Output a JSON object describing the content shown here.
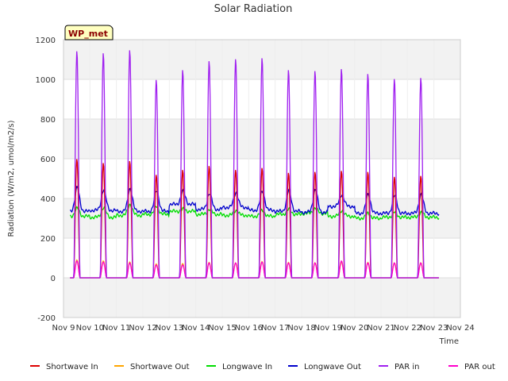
{
  "chart_data": {
    "type": "line",
    "title": "Solar Radiation",
    "xlabel": "Time",
    "ylabel": "Radiation (W/m2, umol/m2/s)",
    "badge": "WP_met",
    "xlim": [
      9,
      24
    ],
    "ylim": [
      -200,
      1200
    ],
    "x_ticks": [
      {
        "value": 9,
        "label": "Nov 9"
      },
      {
        "value": 10,
        "label": "Nov 10"
      },
      {
        "value": 11,
        "label": "Nov 11"
      },
      {
        "value": 12,
        "label": "Nov 12"
      },
      {
        "value": 13,
        "label": "Nov 13"
      },
      {
        "value": 14,
        "label": "Nov 14"
      },
      {
        "value": 15,
        "label": "Nov 15"
      },
      {
        "value": 16,
        "label": "Nov 16"
      },
      {
        "value": 17,
        "label": "Nov 17"
      },
      {
        "value": 18,
        "label": "Nov 18"
      },
      {
        "value": 19,
        "label": "Nov 19"
      },
      {
        "value": 20,
        "label": "Nov 20"
      },
      {
        "value": 21,
        "label": "Nov 21"
      },
      {
        "value": 22,
        "label": "Nov 22"
      },
      {
        "value": 23,
        "label": "Nov 23"
      },
      {
        "value": 24,
        "label": "Nov 24"
      }
    ],
    "y_ticks": [
      -200,
      0,
      200,
      400,
      600,
      800,
      1000,
      1200
    ],
    "grid": true,
    "legend_position": "bottom",
    "series": [
      {
        "name": "Shortwave In",
        "color": "#dd0000",
        "daily_peaks": [
          600,
          580,
          590,
          520,
          545,
          565,
          545,
          555,
          530,
          535,
          540,
          535,
          510,
          515
        ],
        "baseline": [
          0,
          0,
          0,
          0,
          0,
          0,
          0,
          0,
          0,
          0,
          0,
          0,
          0,
          0
        ]
      },
      {
        "name": "Shortwave Out",
        "color": "#ffa500",
        "daily_peaks": [
          90,
          85,
          80,
          70,
          72,
          78,
          75,
          82,
          78,
          76,
          80,
          78,
          75,
          76
        ],
        "baseline": [
          0,
          0,
          0,
          0,
          0,
          0,
          0,
          0,
          0,
          0,
          0,
          0,
          0,
          0
        ]
      },
      {
        "name": "Longwave In",
        "color": "#00dd00",
        "daily_peaks": [
          350,
          355,
          370,
          360,
          345,
          345,
          340,
          340,
          345,
          350,
          340,
          325,
          330,
          330
        ],
        "baseline": [
          310,
          305,
          315,
          320,
          335,
          320,
          315,
          310,
          320,
          325,
          310,
          300,
          305,
          305
        ]
      },
      {
        "name": "Longwave Out",
        "color": "#0000cc",
        "daily_peaks": [
          455,
          445,
          450,
          440,
          435,
          425,
          430,
          435,
          440,
          445,
          420,
          420,
          415,
          420
        ],
        "baseline": [
          335,
          340,
          335,
          335,
          370,
          345,
          355,
          340,
          335,
          330,
          360,
          325,
          325,
          325
        ]
      },
      {
        "name": "PAR in",
        "color": "#a020f0",
        "daily_peaks": [
          1145,
          1135,
          1150,
          1000,
          1050,
          1095,
          1105,
          1110,
          1050,
          1045,
          1055,
          1030,
          1005,
          1010
        ],
        "baseline": [
          0,
          0,
          0,
          0,
          0,
          0,
          0,
          0,
          0,
          0,
          0,
          0,
          0,
          0
        ]
      },
      {
        "name": "PAR out",
        "color": "#ff00cc",
        "daily_peaks": [
          85,
          80,
          75,
          65,
          65,
          75,
          75,
          80,
          75,
          75,
          85,
          75,
          75,
          75
        ],
        "baseline": [
          0,
          0,
          0,
          0,
          0,
          0,
          0,
          0,
          0,
          0,
          0,
          0,
          0,
          0
        ]
      }
    ]
  }
}
